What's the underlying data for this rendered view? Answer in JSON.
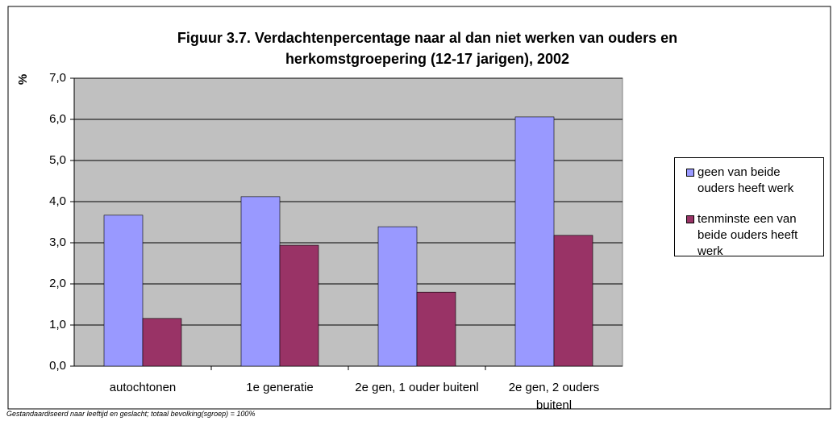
{
  "chart_data": {
    "type": "bar",
    "title": "Figuur 3.7. Verdachtenpercentage naar al dan niet werken van ouders en herkomstgroepering (12-17 jarigen), 2002",
    "y_label": "%",
    "note": "Gestandaardiseerd naar leeftijd en geslacht; totaal bevolking(sgroep) = 100%",
    "categories": [
      "autochtonen",
      "1e generatie",
      "2e gen, 1 ouder buitenl",
      "2e gen, 2 ouders buitenl"
    ],
    "series": [
      {
        "name": "geen van beide ouders heeft werk",
        "color": "#9999ff",
        "values": [
          3.67,
          4.12,
          3.39,
          6.06
        ]
      },
      {
        "name": "tenminste een van beide ouders heeft werk",
        "color": "#993366",
        "values": [
          1.16,
          2.94,
          1.8,
          3.18
        ]
      }
    ],
    "ylim": [
      0,
      7
    ],
    "yticks": [
      {
        "value": 0,
        "label": "0,0"
      },
      {
        "value": 1,
        "label": "1,0"
      },
      {
        "value": 2,
        "label": "2,0"
      },
      {
        "value": 3,
        "label": "3,0"
      },
      {
        "value": 4,
        "label": "4,0"
      },
      {
        "value": 5,
        "label": "5,0"
      },
      {
        "value": 6,
        "label": "6,0"
      },
      {
        "value": 7,
        "label": "7,0"
      }
    ],
    "grid": true,
    "legend": "right"
  }
}
